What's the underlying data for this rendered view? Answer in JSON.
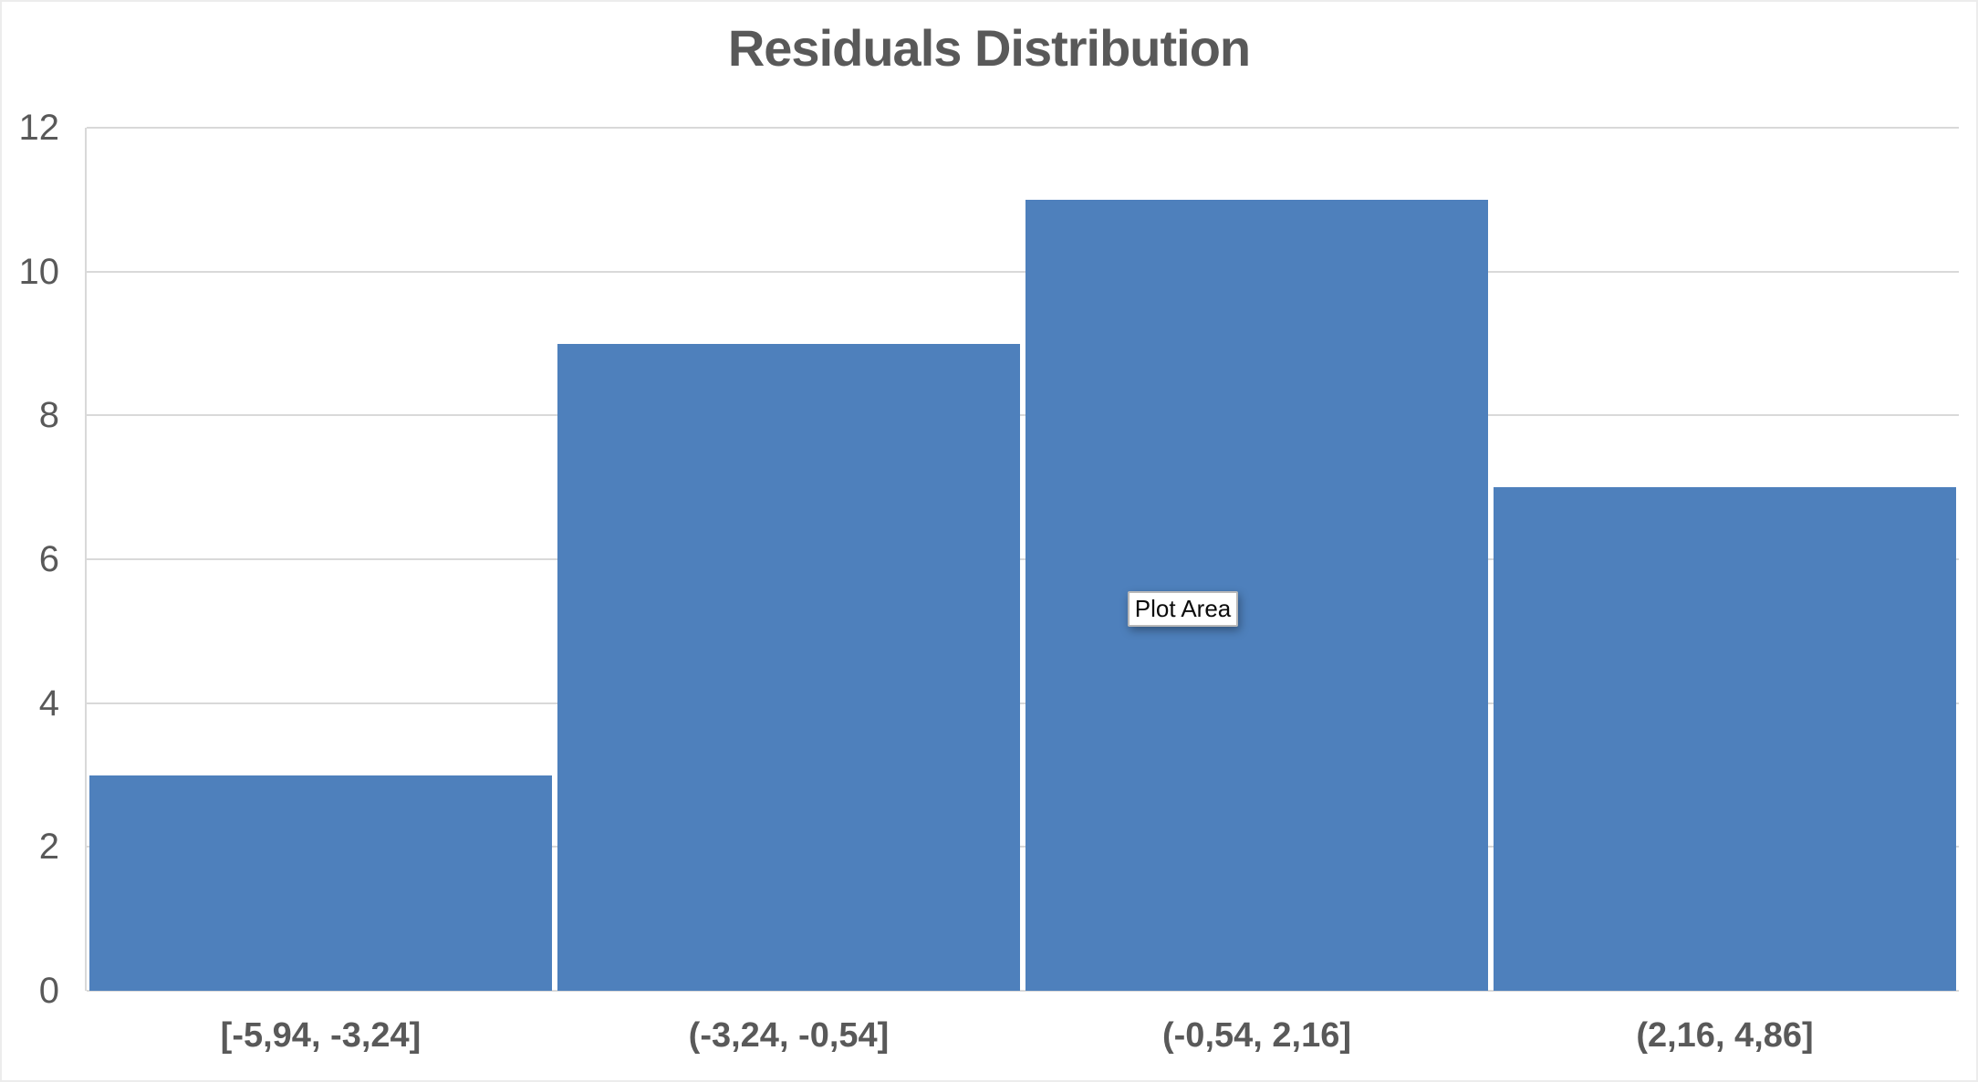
{
  "chart_data": {
    "type": "bar",
    "title": "Residuals Distribution",
    "categories": [
      "[-5,94, -3,24]",
      "(-3,24, -0,54]",
      "(-0,54, 2,16]",
      "(2,16, 4,86]"
    ],
    "values": [
      3,
      9,
      11,
      7
    ],
    "xlabel": "",
    "ylabel": "",
    "ylim": [
      0,
      12
    ],
    "yticks": [
      0,
      2,
      4,
      6,
      8,
      10,
      12
    ],
    "grid": true,
    "legend": false,
    "bar_color": "#4e80bc",
    "gridline_color": "#d9d9d9",
    "axis_label_color": "#595959",
    "title_color": "#595959"
  },
  "tooltip": {
    "label": "Plot Area"
  }
}
